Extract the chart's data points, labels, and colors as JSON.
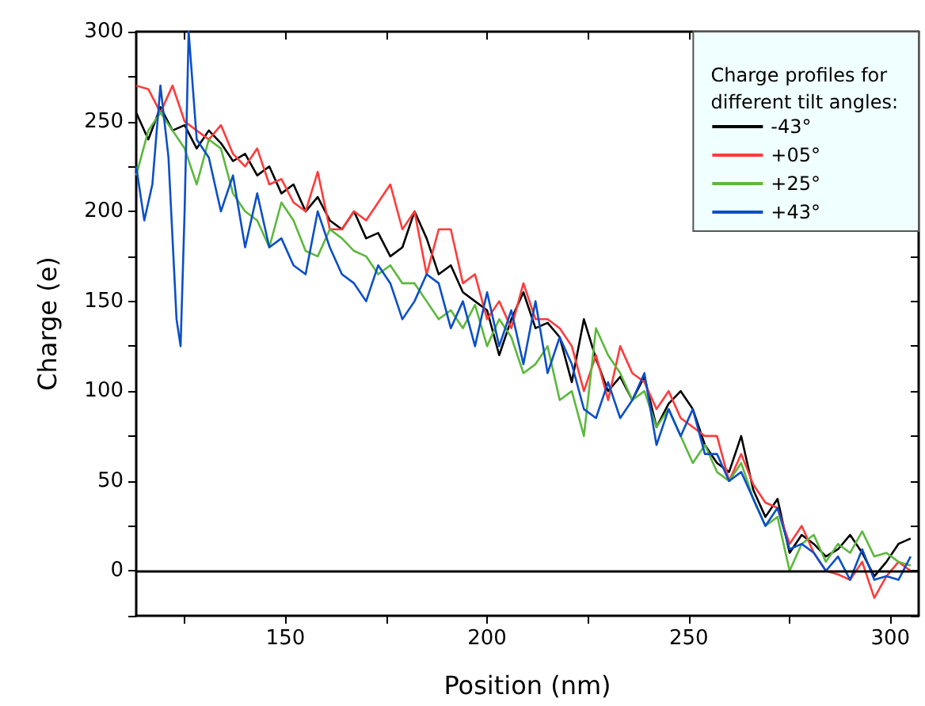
{
  "chart_data": {
    "type": "line",
    "xlabel": "Position (nm)",
    "ylabel": "Charge (e)",
    "legend_title": "Charge profiles for\ndifferent tilt angles:",
    "xlim": [
      113,
      307
    ],
    "xticks": [
      {
        "value": 125,
        "label": null
      },
      150,
      {
        "value": 175,
        "label": null
      },
      200,
      {
        "value": 225,
        "label": null
      },
      250,
      {
        "value": 275,
        "label": null
      },
      300
    ],
    "ylim": [
      -25,
      300
    ],
    "yticks": [
      {
        "value": -25,
        "label": null
      },
      0,
      {
        "value": 25,
        "label": null
      },
      50,
      {
        "value": 75,
        "label": null
      },
      100,
      {
        "value": 125,
        "label": null
      },
      150,
      {
        "value": 175,
        "label": null
      },
      200,
      {
        "value": 225,
        "label": null
      },
      250,
      {
        "value": 275,
        "label": null
      },
      300
    ],
    "grid": false,
    "legend": "top right",
    "marker": "none",
    "line_style": "solid",
    "ref_lines": [
      {
        "axis": "y",
        "value": 0,
        "color": "#000000"
      }
    ],
    "series": [
      {
        "name": "-43°",
        "color": "#000000",
        "x": [
          113,
          116,
          119,
          122,
          125,
          128,
          131,
          134,
          137,
          140,
          143,
          146,
          149,
          152,
          155,
          158,
          161,
          164,
          167,
          170,
          173,
          176,
          179,
          182,
          185,
          188,
          191,
          194,
          197,
          200,
          203,
          206,
          209,
          212,
          215,
          218,
          221,
          224,
          227,
          230,
          233,
          236,
          239,
          242,
          245,
          248,
          251,
          254,
          257,
          260,
          263,
          266,
          269,
          272,
          275,
          278,
          281,
          284,
          287,
          290,
          293,
          296,
          299,
          302,
          305
        ],
        "values": [
          255,
          240,
          258,
          245,
          248,
          235,
          245,
          238,
          228,
          232,
          220,
          225,
          210,
          215,
          200,
          208,
          195,
          190,
          200,
          185,
          188,
          175,
          180,
          200,
          185,
          165,
          170,
          155,
          150,
          145,
          120,
          140,
          155,
          135,
          138,
          130,
          105,
          140,
          118,
          100,
          108,
          95,
          108,
          80,
          93,
          100,
          90,
          70,
          60,
          55,
          75,
          45,
          30,
          40,
          10,
          20,
          15,
          8,
          12,
          20,
          10,
          -3,
          5,
          15,
          18
        ]
      },
      {
        "name": "+05°",
        "color": "#ff3b3b",
        "x": [
          113,
          116,
          119,
          122,
          125,
          128,
          131,
          134,
          137,
          140,
          143,
          146,
          149,
          152,
          155,
          158,
          161,
          164,
          167,
          170,
          173,
          176,
          179,
          182,
          185,
          188,
          191,
          194,
          197,
          200,
          203,
          206,
          209,
          212,
          215,
          218,
          221,
          224,
          227,
          230,
          233,
          236,
          239,
          242,
          245,
          248,
          251,
          254,
          257,
          260,
          263,
          266,
          269,
          272,
          275,
          278,
          281,
          284,
          287,
          290,
          293,
          296,
          299,
          302,
          305
        ],
        "values": [
          270,
          268,
          255,
          270,
          250,
          245,
          240,
          248,
          232,
          225,
          235,
          215,
          218,
          205,
          200,
          222,
          190,
          190,
          200,
          195,
          205,
          215,
          190,
          200,
          165,
          190,
          190,
          160,
          165,
          140,
          150,
          135,
          160,
          140,
          140,
          135,
          125,
          100,
          120,
          95,
          125,
          110,
          105,
          90,
          100,
          85,
          80,
          75,
          75,
          50,
          65,
          48,
          38,
          35,
          15,
          25,
          10,
          0,
          -2,
          -5,
          5,
          -15,
          -3,
          5,
          0
        ]
      },
      {
        "name": "+25°",
        "color": "#5cb83c",
        "x": [
          113,
          116,
          119,
          122,
          125,
          128,
          131,
          134,
          137,
          140,
          143,
          146,
          149,
          152,
          155,
          158,
          161,
          164,
          167,
          170,
          173,
          176,
          179,
          182,
          185,
          188,
          191,
          194,
          197,
          200,
          203,
          206,
          209,
          212,
          215,
          218,
          221,
          224,
          227,
          230,
          233,
          236,
          239,
          242,
          245,
          248,
          251,
          254,
          257,
          260,
          263,
          266,
          269,
          272,
          275,
          278,
          281,
          284,
          287,
          290,
          293,
          296,
          299,
          302,
          305
        ],
        "values": [
          220,
          245,
          255,
          245,
          235,
          215,
          240,
          235,
          210,
          200,
          195,
          180,
          205,
          195,
          178,
          175,
          190,
          185,
          178,
          175,
          165,
          170,
          160,
          160,
          150,
          140,
          145,
          135,
          148,
          125,
          140,
          130,
          110,
          115,
          125,
          95,
          100,
          75,
          135,
          120,
          110,
          95,
          100,
          80,
          90,
          75,
          60,
          70,
          55,
          50,
          60,
          40,
          25,
          30,
          0,
          15,
          20,
          5,
          15,
          10,
          22,
          8,
          10,
          5,
          3
        ]
      },
      {
        "name": "+43°",
        "color": "#0b4fc8",
        "x": [
          113,
          115,
          117,
          119,
          121,
          123,
          124,
          125,
          126,
          128,
          131,
          134,
          137,
          140,
          143,
          146,
          149,
          152,
          155,
          158,
          161,
          164,
          167,
          170,
          173,
          176,
          179,
          182,
          185,
          188,
          191,
          194,
          197,
          200,
          203,
          206,
          209,
          212,
          215,
          218,
          221,
          224,
          227,
          230,
          233,
          236,
          239,
          242,
          245,
          248,
          251,
          254,
          257,
          260,
          263,
          266,
          269,
          272,
          275,
          278,
          281,
          284,
          287,
          290,
          293,
          296,
          299,
          302,
          305
        ],
        "values": [
          225,
          195,
          215,
          270,
          230,
          140,
          125,
          200,
          300,
          240,
          230,
          200,
          220,
          180,
          210,
          180,
          185,
          170,
          165,
          200,
          180,
          165,
          160,
          150,
          170,
          160,
          140,
          150,
          165,
          160,
          135,
          150,
          125,
          155,
          125,
          145,
          115,
          150,
          110,
          130,
          115,
          90,
          85,
          105,
          85,
          95,
          110,
          70,
          90,
          75,
          90,
          65,
          65,
          50,
          55,
          40,
          25,
          35,
          12,
          15,
          10,
          0,
          8,
          -5,
          12,
          -5,
          -3,
          -5,
          8
        ]
      }
    ]
  }
}
